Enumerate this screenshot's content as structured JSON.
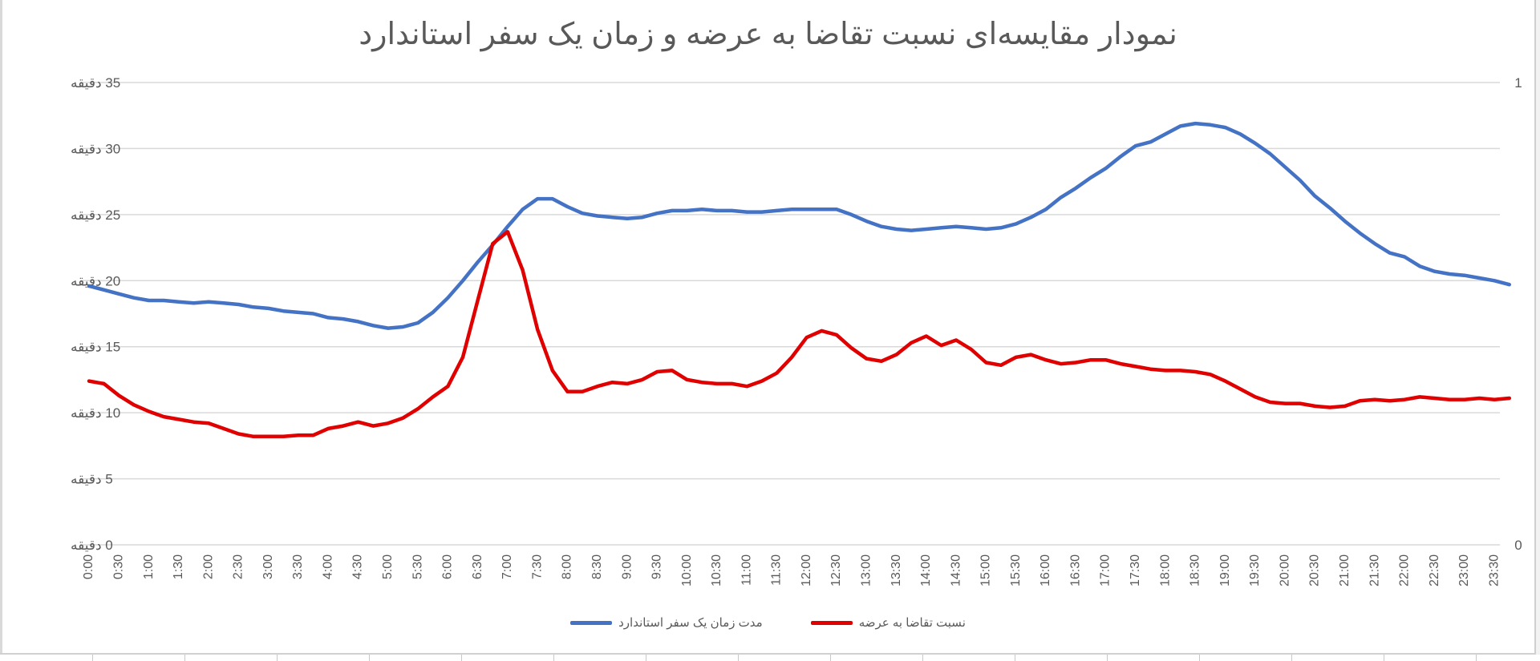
{
  "chart_data": {
    "type": "line",
    "title": "نمودار مقایسه‌ای نسبت تقاضا به عرضه و زمان یک سفر استاندارد",
    "xlabel": "",
    "ylabel": "",
    "y_unit": "دقیقه",
    "ylim": [
      0,
      35
    ],
    "y_ticks": [
      0,
      5,
      10,
      15,
      20,
      25,
      30,
      35
    ],
    "y_tick_labels": [
      "0 دقیقه",
      "5 دقیقه",
      "10 دقیقه",
      "15 دقیقه",
      "20 دقیقه",
      "25 دقیقه",
      "30 دقیقه",
      "35 دقیقه"
    ],
    "secondary_ylim": [
      0,
      1
    ],
    "secondary_y_tick_labels": [
      "0",
      "1"
    ],
    "grid": true,
    "legend_position": "bottom",
    "x_tick_labels": [
      "0:00",
      "0:30",
      "1:00",
      "1:30",
      "2:00",
      "2:30",
      "3:00",
      "3:30",
      "4:00",
      "4:30",
      "5:00",
      "5:30",
      "6:00",
      "6:30",
      "7:00",
      "7:30",
      "8:00",
      "8:30",
      "9:00",
      "9:30",
      "10:00",
      "10:30",
      "11:00",
      "11:30",
      "12:00",
      "12:30",
      "13:00",
      "13:30",
      "14:00",
      "14:30",
      "15:00",
      "15:30",
      "16:00",
      "16:30",
      "17:00",
      "17:30",
      "18:00",
      "18:30",
      "19:00",
      "19:30",
      "20:00",
      "20:30",
      "21:00",
      "21:30",
      "22:00",
      "22:30",
      "23:00",
      "23:30"
    ],
    "x_interval_minutes": 15,
    "series": [
      {
        "name": "مدت زمان یک سفر استاندارد",
        "color": "#4472c4",
        "values": [
          19.6,
          19.3,
          19.0,
          18.7,
          18.5,
          18.5,
          18.4,
          18.3,
          18.4,
          18.3,
          18.2,
          18.0,
          17.9,
          17.7,
          17.6,
          17.5,
          17.2,
          17.1,
          16.9,
          16.6,
          16.4,
          16.5,
          16.8,
          17.6,
          18.7,
          20.0,
          21.4,
          22.7,
          24.1,
          25.4,
          26.2,
          26.2,
          25.6,
          25.1,
          24.9,
          24.8,
          24.7,
          24.8,
          25.1,
          25.3,
          25.3,
          25.4,
          25.3,
          25.3,
          25.2,
          25.2,
          25.3,
          25.4,
          25.4,
          25.4,
          25.4,
          25.0,
          24.5,
          24.1,
          23.9,
          23.8,
          23.9,
          24.0,
          24.1,
          24.0,
          23.9,
          24.0,
          24.3,
          24.8,
          25.4,
          26.3,
          27.0,
          27.8,
          28.5,
          29.4,
          30.2,
          30.5,
          31.1,
          31.7,
          31.9,
          31.8,
          31.6,
          31.1,
          30.4,
          29.6,
          28.6,
          27.6,
          26.4,
          25.5,
          24.5,
          23.6,
          22.8,
          22.1,
          21.8,
          21.1,
          20.7,
          20.5,
          20.4,
          20.2,
          20.0,
          19.7
        ]
      },
      {
        "name": "نسبت تقاضا به عرضه",
        "color": "#e00000",
        "values": [
          12.4,
          12.2,
          11.3,
          10.6,
          10.1,
          9.7,
          9.5,
          9.3,
          9.2,
          8.8,
          8.4,
          8.2,
          8.2,
          8.2,
          8.3,
          8.3,
          8.8,
          9.0,
          9.3,
          9.0,
          9.2,
          9.6,
          10.3,
          11.2,
          12.0,
          14.2,
          18.5,
          22.8,
          23.7,
          20.8,
          16.3,
          13.2,
          11.6,
          11.6,
          12.0,
          12.3,
          12.2,
          12.5,
          13.1,
          13.2,
          12.5,
          12.3,
          12.2,
          12.2,
          12.0,
          12.4,
          13.0,
          14.2,
          15.7,
          16.2,
          15.9,
          14.9,
          14.1,
          13.9,
          14.4,
          15.3,
          15.8,
          15.1,
          15.5,
          14.8,
          13.8,
          13.6,
          14.2,
          14.4,
          14.0,
          13.7,
          13.8,
          14.0,
          14.0,
          13.7,
          13.5,
          13.3,
          13.2,
          13.2,
          13.1,
          12.9,
          12.4,
          11.8,
          11.2,
          10.8,
          10.7,
          10.7,
          10.5,
          10.4,
          10.5,
          10.9,
          11.0,
          10.9,
          11.0,
          11.2,
          11.1,
          11.0,
          11.0,
          11.1,
          11.0,
          11.1
        ]
      }
    ]
  },
  "legend": {
    "items": [
      {
        "label": "مدت زمان یک سفر استاندارد",
        "color": "#4472c4"
      },
      {
        "label": "نسبت تقاضا به عرضه",
        "color": "#e00000"
      }
    ]
  }
}
